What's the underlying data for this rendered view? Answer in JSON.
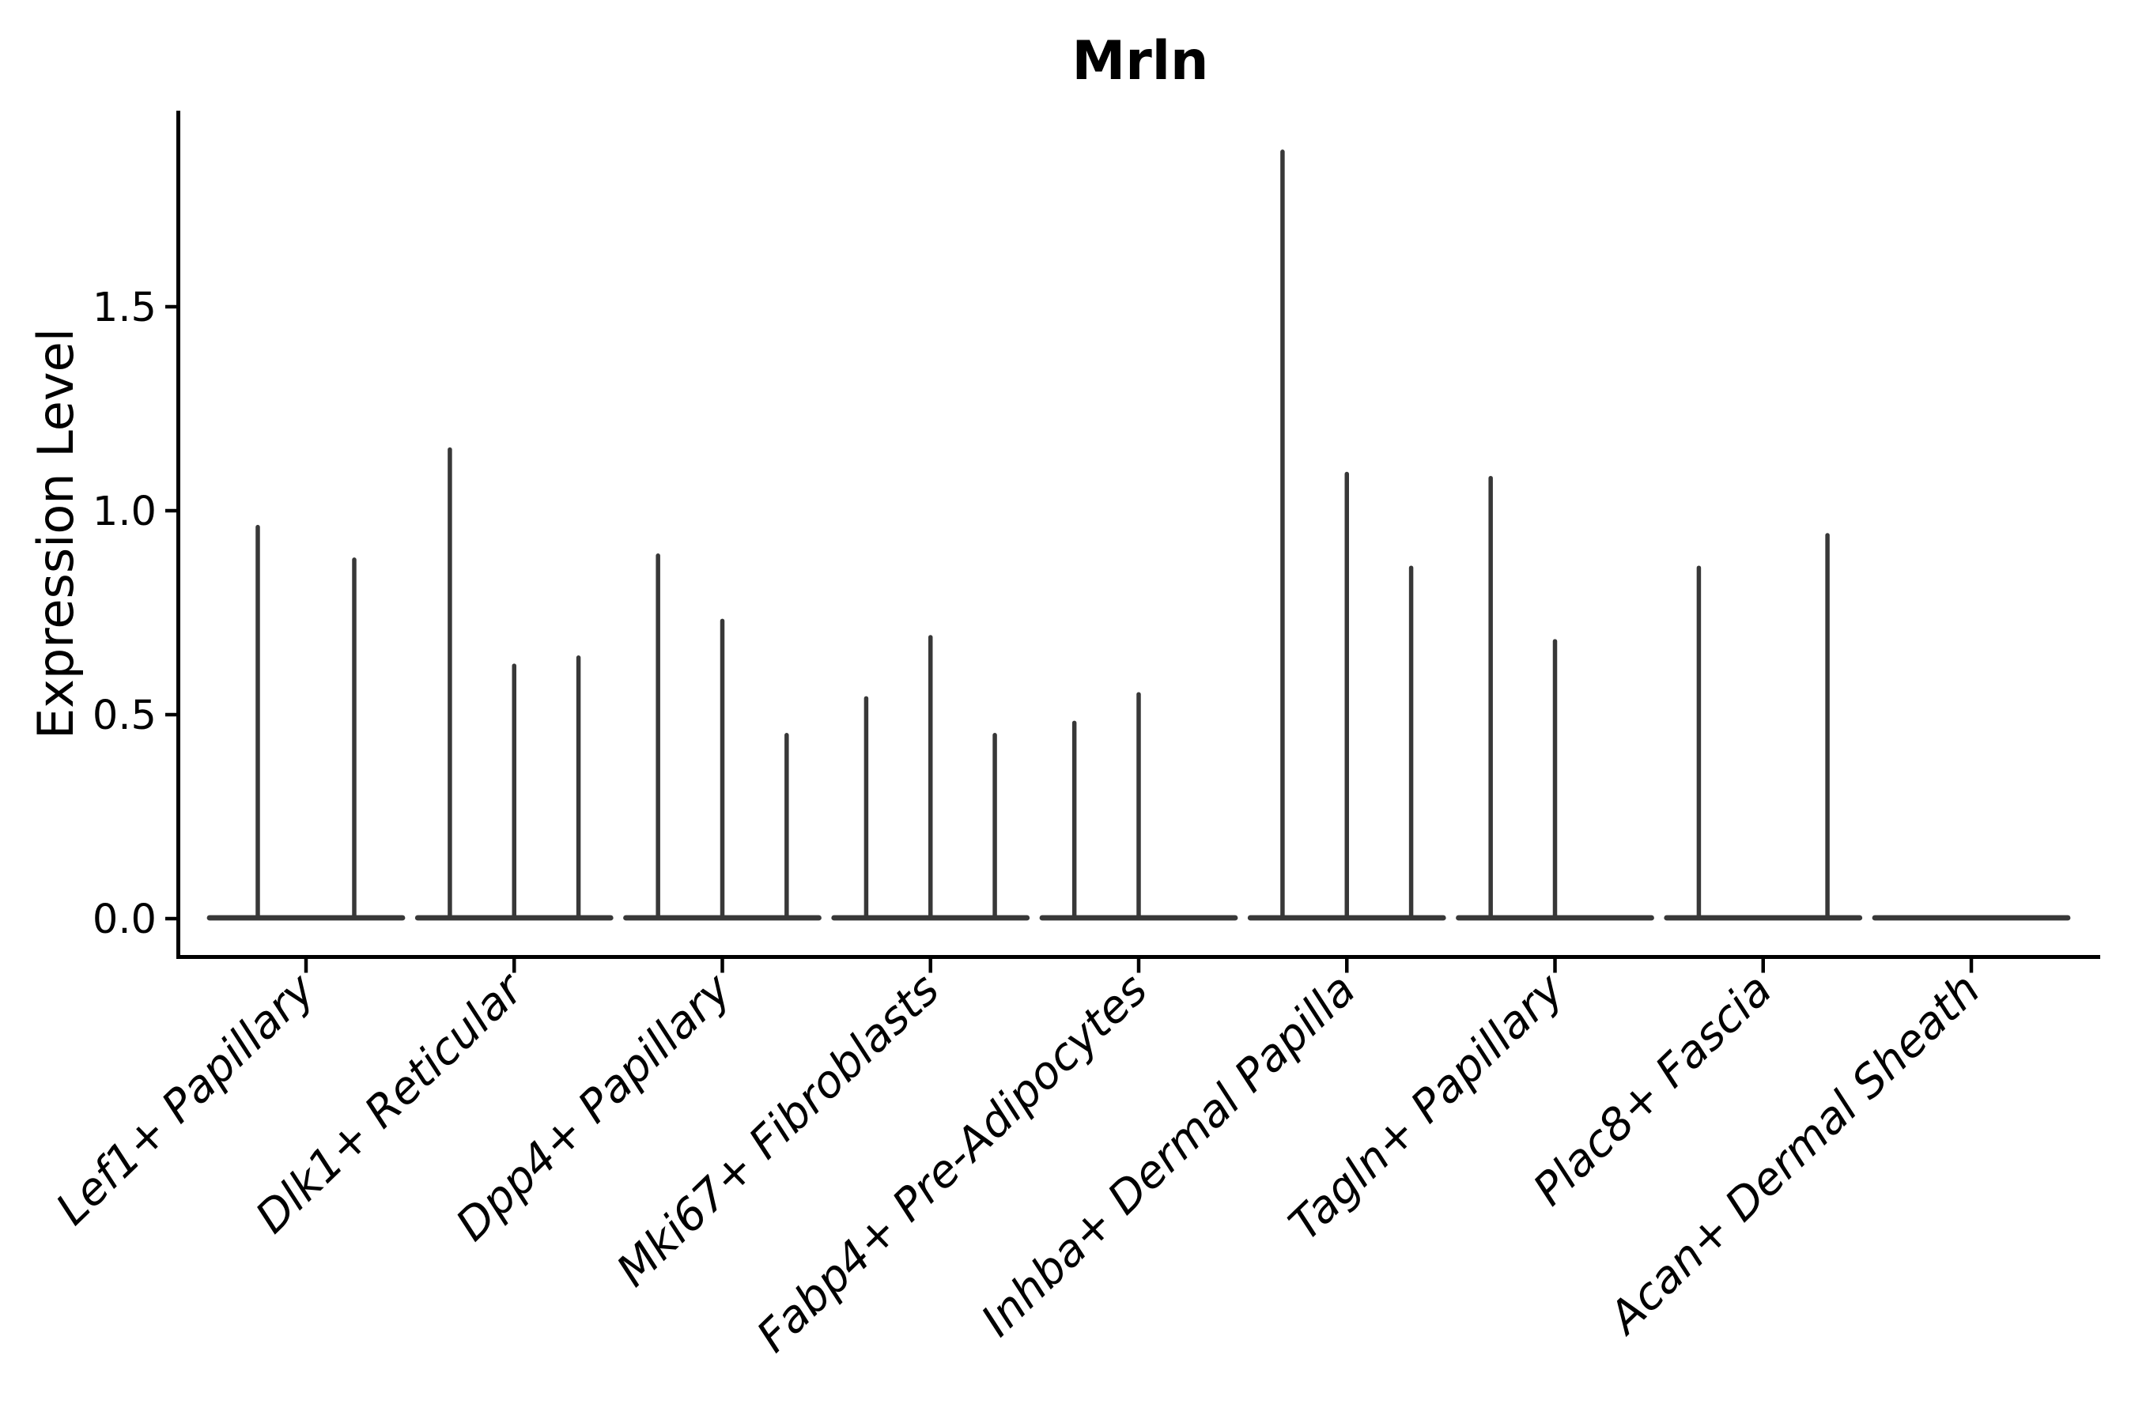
{
  "title": "Mrln",
  "chart_data": {
    "type": "violin",
    "title": "Mrln",
    "xlabel": "",
    "ylabel": "Expression Level",
    "ytick_labels": [
      "0.0",
      "0.5",
      "1.0",
      "1.5"
    ],
    "ytick_values": [
      0.0,
      0.5,
      1.0,
      1.5
    ],
    "ylim": [
      -0.095,
      1.975
    ],
    "grid": false,
    "legend": "none",
    "x_label_rotation_deg": 44,
    "categories": [
      "Lef1+ Papillary",
      "Dlk1+ Reticular",
      "Dpp4+ Papillary",
      "Mki67+ Fibroblasts",
      "Fabp4+ Pre-Adipocytes",
      "Inhba+ Dermal Papilla",
      "Tagln+ Papillary",
      "Plac8+ Fascia",
      "Acan+ Dermal Sheath"
    ],
    "groups": [
      {
        "label": "Lef1+ Papillary",
        "n_violins": 2,
        "spikes": [
          {
            "slot": 0,
            "value": 0.96
          },
          {
            "slot": 1,
            "value": 0.88
          }
        ]
      },
      {
        "label": "Dlk1+ Reticular",
        "n_violins": 3,
        "spikes": [
          {
            "slot": 0,
            "value": 1.15
          },
          {
            "slot": 1,
            "value": 0.62
          },
          {
            "slot": 2,
            "value": 0.64
          }
        ]
      },
      {
        "label": "Dpp4+ Papillary",
        "n_violins": 3,
        "spikes": [
          {
            "slot": 0,
            "value": 0.89
          },
          {
            "slot": 1,
            "value": 0.73
          },
          {
            "slot": 2,
            "value": 0.45
          }
        ]
      },
      {
        "label": "Mki67+ Fibroblasts",
        "n_violins": 3,
        "spikes": [
          {
            "slot": 0,
            "value": 0.54
          },
          {
            "slot": 1,
            "value": 0.69
          },
          {
            "slot": 2,
            "value": 0.45
          }
        ]
      },
      {
        "label": "Fabp4+ Pre-Adipocytes",
        "n_violins": 3,
        "spikes": [
          {
            "slot": 0,
            "value": 0.48
          },
          {
            "slot": 1,
            "value": 0.55
          }
        ]
      },
      {
        "label": "Inhba+ Dermal Papilla",
        "n_violins": 3,
        "spikes": [
          {
            "slot": 0,
            "value": 1.88
          },
          {
            "slot": 1,
            "value": 1.09
          },
          {
            "slot": 2,
            "value": 0.86
          }
        ]
      },
      {
        "label": "Tagln+ Papillary",
        "n_violins": 3,
        "spikes": [
          {
            "slot": 0,
            "value": 1.08
          },
          {
            "slot": 1,
            "value": 0.68
          }
        ]
      },
      {
        "label": "Plac8+ Fascia",
        "n_violins": 3,
        "spikes": [
          {
            "slot": 0,
            "value": 0.86
          },
          {
            "slot": 2,
            "value": 0.94
          }
        ]
      },
      {
        "label": "Acan+ Dermal Sheath",
        "n_violins": 3,
        "spikes": []
      }
    ],
    "colors": {
      "violin": "#383838",
      "axis": "#000000",
      "text": "#000000",
      "background": "#ffffff"
    }
  }
}
